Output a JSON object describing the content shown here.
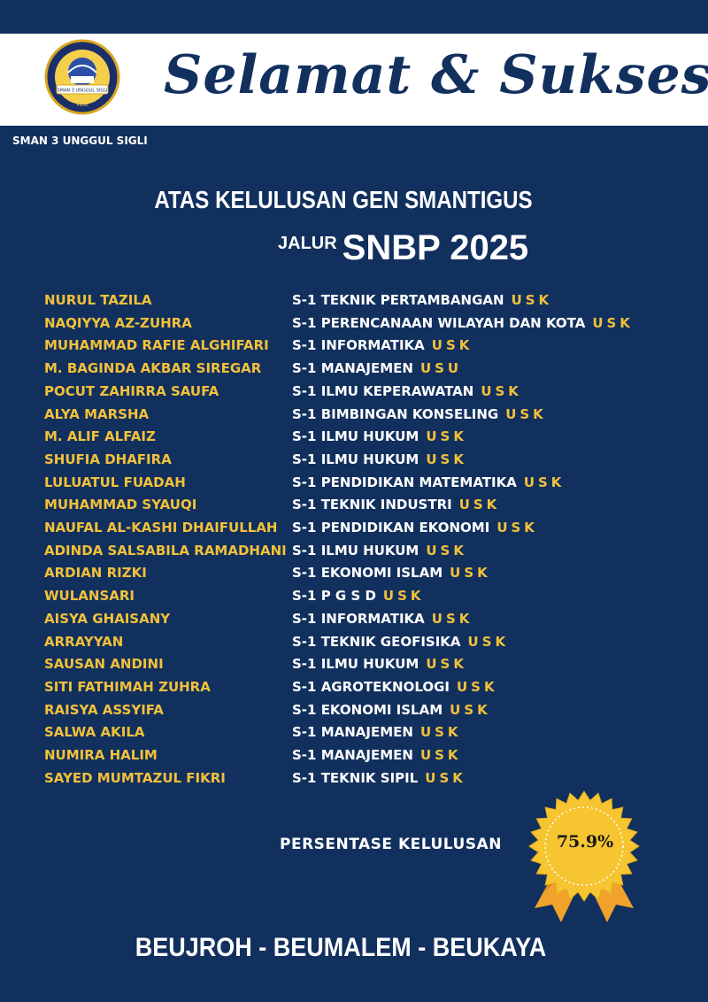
{
  "header": {
    "headline": "Selamat & Sukses",
    "logo_text": "SEKOLAH UNGGUL NON BOARDING",
    "logo_banner": "SMAN 3 UNGGUL SIGLI",
    "logo_bottom": "PIDIE"
  },
  "school_name": "SMAN 3 UNGGUL SIGLI",
  "title_line1": "ATAS KELULUSAN GEN SMANTIGUS",
  "title_line2_small": "JALUR",
  "title_line2_big": "SNBP 2025",
  "graduates": [
    {
      "name": "NURUL TAZILA",
      "program": "S-1 TEKNIK PERTAMBANGAN",
      "uni": "USK"
    },
    {
      "name": "NAQIYYA AZ-ZUHRA",
      "program": "S-1 PERENCANAAN WILAYAH DAN KOTA",
      "uni": "USK"
    },
    {
      "name": "MUHAMMAD RAFIE ALGHIFARI",
      "program": "S-1 INFORMATIKA",
      "uni": "USK"
    },
    {
      "name": "M. BAGINDA AKBAR SIREGAR",
      "program": "S-1 MANAJEMEN",
      "uni": "USU"
    },
    {
      "name": "POCUT ZAHIRRA SAUFA",
      "program": "S-1 ILMU KEPERAWATAN",
      "uni": "USK"
    },
    {
      "name": "ALYA MARSHA",
      "program": "S-1 BIMBINGAN KONSELING",
      "uni": "USK"
    },
    {
      "name": "M. ALIF ALFAIZ",
      "program": "S-1 ILMU HUKUM",
      "uni": "USK"
    },
    {
      "name": "SHUFIA DHAFIRA",
      "program": "S-1 ILMU HUKUM",
      "uni": "USK"
    },
    {
      "name": "LULUATUL FUADAH",
      "program": "S-1 PENDIDIKAN MATEMATIKA",
      "uni": "USK"
    },
    {
      "name": "MUHAMMAD SYAUQI",
      "program": "S-1 TEKNIK INDUSTRI",
      "uni": "USK"
    },
    {
      "name": "NAUFAL AL-KASHI DHAIFULLAH",
      "program": "S-1 PENDIDIKAN EKONOMI",
      "uni": "USK"
    },
    {
      "name": "ADINDA SALSABILA RAMADHANI",
      "program": "S-1 ILMU HUKUM",
      "uni": "USK"
    },
    {
      "name": "ARDIAN RIZKI",
      "program": "S-1 EKONOMI ISLAM",
      "uni": "USK"
    },
    {
      "name": "WULANSARI",
      "program": "S-1 P G S D",
      "uni": "USK"
    },
    {
      "name": "AISYA GHAISANY",
      "program": "S-1 INFORMATIKA",
      "uni": "USK"
    },
    {
      "name": "ARRAYYAN",
      "program": "S-1 TEKNIK GEOFISIKA",
      "uni": "USK"
    },
    {
      "name": "SAUSAN ANDINI",
      "program": "S-1 ILMU HUKUM",
      "uni": "USK"
    },
    {
      "name": "SITI FATHIMAH ZUHRA",
      "program": "S-1 AGROTEKNOLOGI",
      "uni": "USK"
    },
    {
      "name": "RAISYA ASSYIFA",
      "program": "S-1 EKONOMI ISLAM",
      "uni": "USK"
    },
    {
      "name": "SALWA AKILA",
      "program": "S-1 MANAJEMEN",
      "uni": "USK"
    },
    {
      "name": "NUMIRA HALIM",
      "program": "S-1 MANAJEMEN",
      "uni": "USK"
    },
    {
      "name": "SAYED MUMTAZUL FIKRI",
      "program": "S-1 TEKNIK SIPIL",
      "uni": "USK"
    }
  ],
  "pass_rate_label": "PERSENTASE KELULUSAN",
  "pass_rate_value": "75.9%",
  "motto": "BEUJROH - BEUMALEM - BEUKAYA",
  "colors": {
    "navy": "#12305e",
    "gold": "#f2c13a",
    "white": "#ffffff",
    "badge_gold": "#f7c531",
    "ribbon_orange": "#f0a22b"
  },
  "icons": {
    "logo": "school-crest-icon",
    "badge": "rosette-badge-icon"
  }
}
